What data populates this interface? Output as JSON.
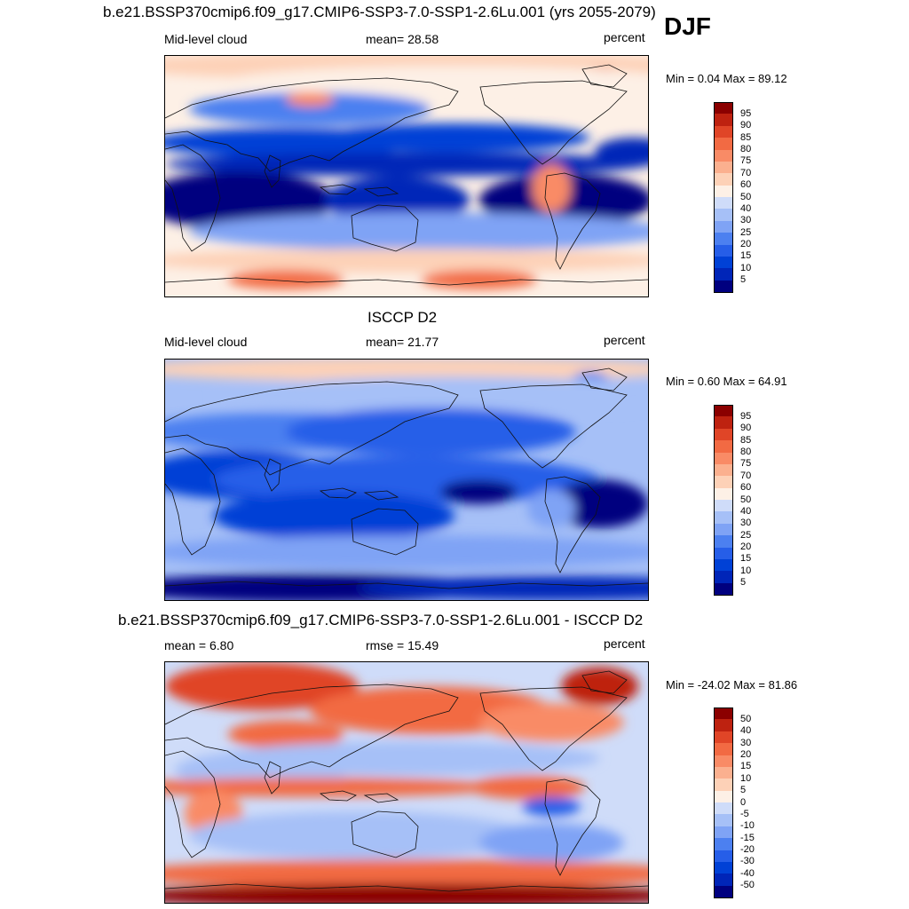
{
  "season": "DJF",
  "units": "percent",
  "palettes": {
    "abs": [
      "#00007f",
      "#0025b8",
      "#0041d6",
      "#265ee8",
      "#4c80f0",
      "#7fa3f5",
      "#a6c0f7",
      "#cfdcf9",
      "#fdf0e6",
      "#fdd1b7",
      "#fbb08f",
      "#f98b66",
      "#f26a43",
      "#e04527",
      "#be2210",
      "#8b0000"
    ],
    "diff": [
      "#00007f",
      "#0025b8",
      "#0041d6",
      "#265ee8",
      "#4c80f0",
      "#7fa3f5",
      "#a6c0f7",
      "#cfdcf9",
      "#fdf0e6",
      "#fdd1b7",
      "#fbb08f",
      "#f98b66",
      "#f26a43",
      "#e04527",
      "#be2210",
      "#8b0000"
    ]
  },
  "panels": [
    {
      "id": "model",
      "title": "b.e21.BSSP370cmip6.f09_g17.CMIP6-SSP3-7.0-SSP1-2.6Lu.001 (yrs 2055-2079)",
      "left_label": "Mid-level cloud",
      "center_label": "mean=  28.58",
      "right_label": "percent",
      "minmax": "Min =   0.04 Max =  89.12",
      "levels": [
        "95",
        "90",
        "85",
        "80",
        "75",
        "70",
        "60",
        "50",
        "40",
        "30",
        "25",
        "20",
        "15",
        "10",
        "5"
      ],
      "palette": "abs"
    },
    {
      "id": "obs",
      "title": "ISCCP D2",
      "left_label": "Mid-level cloud",
      "center_label": "mean=  21.77",
      "right_label": "percent",
      "minmax": "Min =   0.60 Max =  64.91",
      "levels": [
        "95",
        "90",
        "85",
        "80",
        "75",
        "70",
        "60",
        "50",
        "40",
        "30",
        "25",
        "20",
        "15",
        "10",
        "5"
      ],
      "palette": "abs"
    },
    {
      "id": "diff",
      "title": "b.e21.BSSP370cmip6.f09_g17.CMIP6-SSP3-7.0-SSP1-2.6Lu.001 - ISCCP D2",
      "left_label": "mean =   6.80",
      "center_label": "rmse =  15.49",
      "right_label": "percent",
      "minmax": "Min = -24.02 Max =  81.86",
      "levels": [
        "50",
        "40",
        "30",
        "20",
        "15",
        "10",
        "5",
        "0",
        "-5",
        "-10",
        "-15",
        "-20",
        "-30",
        "-40",
        "-50"
      ],
      "palette": "diff"
    }
  ]
}
